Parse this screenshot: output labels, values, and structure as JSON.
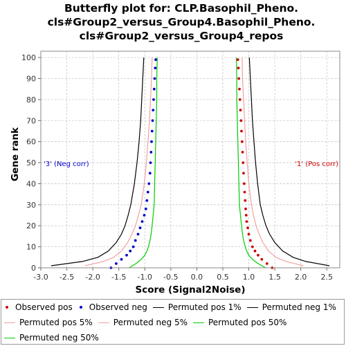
{
  "chart_data": {
    "type": "line",
    "title": [
      "Butterfly plot for: CLP.Basophil_Pheno.",
      "cls#Group2_versus_Group4.Basophil_Pheno.",
      "cls#Group2_versus_Group4_repos"
    ],
    "xlabel": "Score (Signal2Noise)",
    "ylabel": "Gene rank",
    "xlim": [
      -3.0,
      2.75
    ],
    "ylim": [
      0,
      103
    ],
    "xticks": [
      "-3.0",
      "-2.5",
      "-2.0",
      "-1.5",
      "-1.0",
      "-0.5",
      "0.0",
      "0.5",
      "1.0",
      "1.5",
      "2.0",
      "2.5"
    ],
    "yticks": [
      "0",
      "10",
      "20",
      "30",
      "40",
      "50",
      "60",
      "70",
      "80",
      "90",
      "100"
    ],
    "grid": true,
    "legend_position": "bottom",
    "annotations": {
      "neg": {
        "text": "'3' (Neg corr)",
        "color": "#0000cc"
      },
      "pos": {
        "text": "'1' (Pos corr)",
        "color": "#cc0000"
      }
    },
    "series": [
      {
        "name": "Observed pos",
        "style": "dots",
        "color": "#cc0000",
        "points": [
          [
            1.45,
            0
          ],
          [
            1.35,
            2
          ],
          [
            1.25,
            4
          ],
          [
            1.18,
            6
          ],
          [
            1.12,
            8
          ],
          [
            1.07,
            10
          ],
          [
            1.03,
            13
          ],
          [
            1.0,
            16
          ],
          [
            0.98,
            19
          ],
          [
            0.96,
            22
          ],
          [
            0.95,
            25
          ],
          [
            0.94,
            28
          ],
          [
            0.93,
            32
          ],
          [
            0.92,
            36
          ],
          [
            0.91,
            40
          ],
          [
            0.9,
            45
          ],
          [
            0.89,
            50
          ],
          [
            0.88,
            55
          ],
          [
            0.87,
            60
          ],
          [
            0.86,
            65
          ],
          [
            0.85,
            70
          ],
          [
            0.84,
            75
          ],
          [
            0.83,
            80
          ],
          [
            0.82,
            85
          ],
          [
            0.81,
            90
          ],
          [
            0.8,
            95
          ],
          [
            0.79,
            99
          ]
        ]
      },
      {
        "name": "Observed neg",
        "style": "dots",
        "color": "#0000cc",
        "points": [
          [
            -1.65,
            0
          ],
          [
            -1.55,
            2
          ],
          [
            -1.45,
            4
          ],
          [
            -1.35,
            6
          ],
          [
            -1.28,
            8
          ],
          [
            -1.22,
            10
          ],
          [
            -1.18,
            13
          ],
          [
            -1.13,
            16
          ],
          [
            -1.09,
            19
          ],
          [
            -1.05,
            22
          ],
          [
            -1.01,
            25
          ],
          [
            -0.98,
            28
          ],
          [
            -0.96,
            32
          ],
          [
            -0.94,
            36
          ],
          [
            -0.92,
            40
          ],
          [
            -0.9,
            45
          ],
          [
            -0.89,
            50
          ],
          [
            -0.88,
            55
          ],
          [
            -0.87,
            60
          ],
          [
            -0.86,
            65
          ],
          [
            -0.85,
            70
          ],
          [
            -0.84,
            75
          ],
          [
            -0.83,
            80
          ],
          [
            -0.82,
            85
          ],
          [
            -0.81,
            90
          ],
          [
            -0.8,
            95
          ],
          [
            -0.79,
            99
          ]
        ]
      },
      {
        "name": "Permuted pos 1%",
        "style": "line",
        "color": "#000000",
        "points": [
          [
            2.55,
            1
          ],
          [
            2.1,
            3
          ],
          [
            1.85,
            5
          ],
          [
            1.65,
            8
          ],
          [
            1.5,
            12
          ],
          [
            1.4,
            16
          ],
          [
            1.33,
            20
          ],
          [
            1.27,
            25
          ],
          [
            1.22,
            30
          ],
          [
            1.17,
            40
          ],
          [
            1.13,
            50
          ],
          [
            1.1,
            60
          ],
          [
            1.07,
            70
          ],
          [
            1.05,
            80
          ],
          [
            1.03,
            90
          ],
          [
            1.01,
            100
          ]
        ]
      },
      {
        "name": "Permuted neg 1%",
        "style": "line",
        "color": "#000000",
        "points": [
          [
            -2.8,
            1
          ],
          [
            -2.2,
            3
          ],
          [
            -1.9,
            5
          ],
          [
            -1.7,
            8
          ],
          [
            -1.55,
            12
          ],
          [
            -1.45,
            16
          ],
          [
            -1.38,
            20
          ],
          [
            -1.32,
            25
          ],
          [
            -1.27,
            30
          ],
          [
            -1.2,
            40
          ],
          [
            -1.15,
            50
          ],
          [
            -1.11,
            60
          ],
          [
            -1.08,
            70
          ],
          [
            -1.06,
            80
          ],
          [
            -1.04,
            90
          ],
          [
            -1.02,
            100
          ]
        ]
      },
      {
        "name": "Permuted pos 5%",
        "style": "line",
        "color": "#f2a0a0",
        "points": [
          [
            2.05,
            1
          ],
          [
            1.72,
            3
          ],
          [
            1.52,
            5
          ],
          [
            1.38,
            8
          ],
          [
            1.27,
            12
          ],
          [
            1.2,
            16
          ],
          [
            1.14,
            20
          ],
          [
            1.09,
            25
          ],
          [
            1.05,
            30
          ],
          [
            1.0,
            40
          ],
          [
            0.97,
            50
          ],
          [
            0.94,
            60
          ],
          [
            0.92,
            70
          ],
          [
            0.9,
            80
          ],
          [
            0.88,
            90
          ],
          [
            0.87,
            100
          ]
        ]
      },
      {
        "name": "Permuted neg 5%",
        "style": "line",
        "color": "#f2a0a0",
        "points": [
          [
            -2.15,
            1
          ],
          [
            -1.8,
            3
          ],
          [
            -1.6,
            5
          ],
          [
            -1.45,
            8
          ],
          [
            -1.33,
            12
          ],
          [
            -1.25,
            16
          ],
          [
            -1.18,
            20
          ],
          [
            -1.12,
            25
          ],
          [
            -1.07,
            30
          ],
          [
            -1.01,
            40
          ],
          [
            -0.97,
            50
          ],
          [
            -0.94,
            60
          ],
          [
            -0.91,
            70
          ],
          [
            -0.89,
            80
          ],
          [
            -0.87,
            90
          ],
          [
            -0.86,
            100
          ]
        ]
      },
      {
        "name": "Permuted pos 50%",
        "style": "line",
        "color": "#00cc00",
        "points": [
          [
            1.32,
            0
          ],
          [
            1.18,
            2
          ],
          [
            1.07,
            4
          ],
          [
            1.0,
            6
          ],
          [
            0.96,
            8
          ],
          [
            0.93,
            10
          ],
          [
            0.9,
            13
          ],
          [
            0.88,
            16
          ],
          [
            0.86,
            20
          ],
          [
            0.84,
            25
          ],
          [
            0.82,
            30
          ],
          [
            0.81,
            40
          ],
          [
            0.8,
            50
          ],
          [
            0.79,
            60
          ],
          [
            0.78,
            70
          ],
          [
            0.77,
            80
          ],
          [
            0.77,
            90
          ],
          [
            0.76,
            100
          ]
        ]
      },
      {
        "name": "Permuted neg 50%",
        "style": "line",
        "color": "#00cc00",
        "points": [
          [
            -1.3,
            0
          ],
          [
            -1.17,
            2
          ],
          [
            -1.07,
            4
          ],
          [
            -1.0,
            6
          ],
          [
            -0.96,
            8
          ],
          [
            -0.93,
            10
          ],
          [
            -0.9,
            13
          ],
          [
            -0.88,
            16
          ],
          [
            -0.86,
            20
          ],
          [
            -0.84,
            25
          ],
          [
            -0.82,
            30
          ],
          [
            -0.81,
            40
          ],
          [
            -0.8,
            50
          ],
          [
            -0.79,
            60
          ],
          [
            -0.78,
            70
          ],
          [
            -0.77,
            80
          ],
          [
            -0.77,
            90
          ],
          [
            -0.76,
            100
          ]
        ]
      }
    ]
  }
}
